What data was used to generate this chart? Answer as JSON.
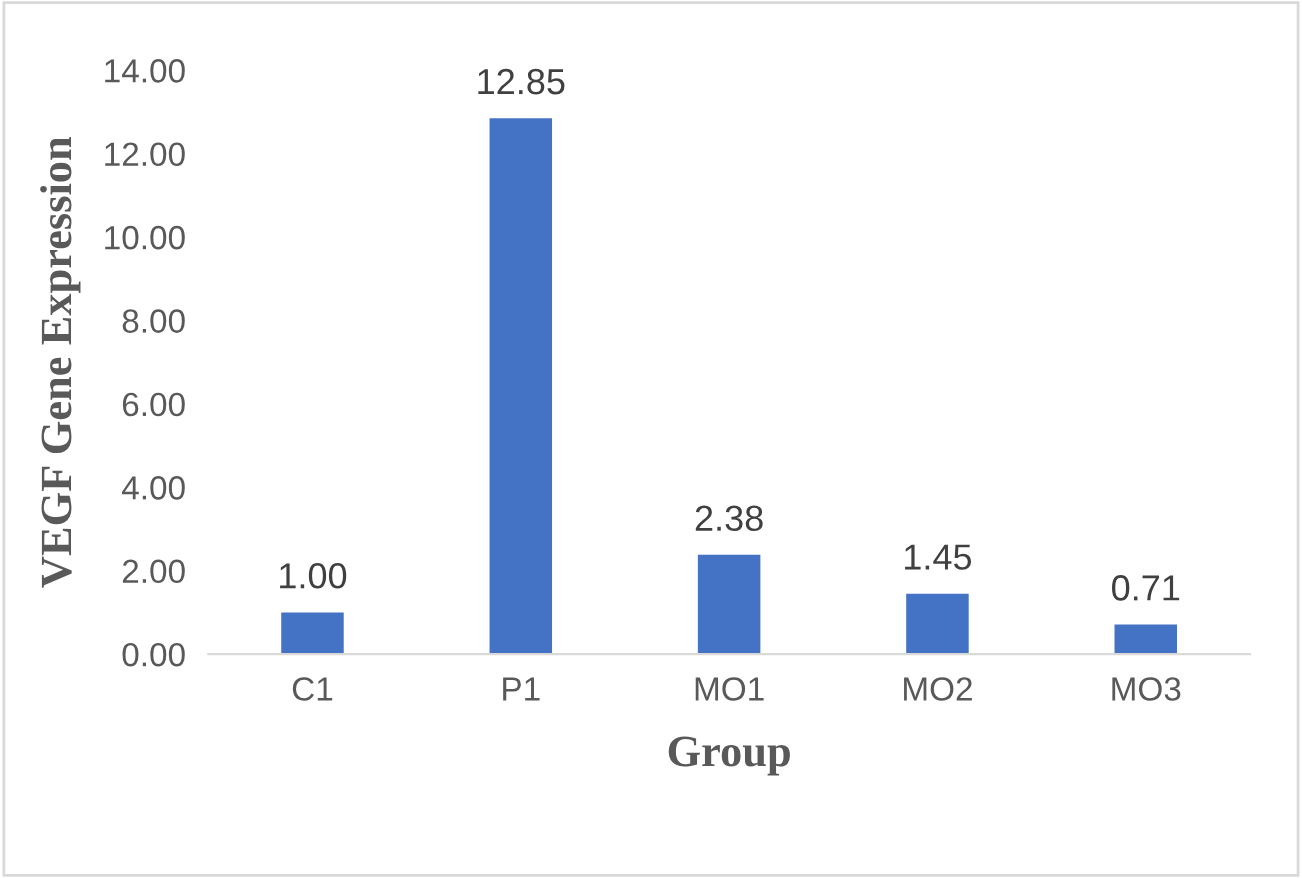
{
  "chart_data": {
    "type": "bar",
    "xlabel": "Group",
    "ylabel": "VEGF Gene Expression",
    "categories": [
      "C1",
      "P1",
      "MO1",
      "MO2",
      "MO3"
    ],
    "values": [
      1.0,
      12.85,
      2.38,
      1.45,
      0.71
    ],
    "value_labels": [
      "1.00",
      "12.85",
      "2.38",
      "1.45",
      "0.71"
    ],
    "color": "#4472c4",
    "ylim": [
      0,
      14
    ],
    "yticks": [
      {
        "value": 0,
        "label": "0.00"
      },
      {
        "value": 2,
        "label": "2.00"
      },
      {
        "value": 4,
        "label": "4.00"
      },
      {
        "value": 6,
        "label": "6.00"
      },
      {
        "value": 8,
        "label": "8.00"
      },
      {
        "value": 10,
        "label": "10.00"
      },
      {
        "value": 12,
        "label": "12.00"
      },
      {
        "value": 14,
        "label": "14.00"
      }
    ],
    "grid": false,
    "legend": false
  }
}
